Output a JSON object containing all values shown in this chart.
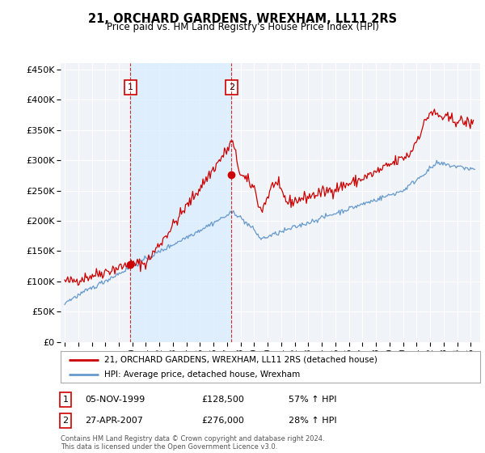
{
  "title": "21, ORCHARD GARDENS, WREXHAM, LL11 2RS",
  "subtitle": "Price paid vs. HM Land Registry's House Price Index (HPI)",
  "legend_line1": "21, ORCHARD GARDENS, WREXHAM, LL11 2RS (detached house)",
  "legend_line2": "HPI: Average price, detached house, Wrexham",
  "note": "Contains HM Land Registry data © Crown copyright and database right 2024.\nThis data is licensed under the Open Government Licence v3.0.",
  "annotation1": {
    "num": "1",
    "date": "05-NOV-1999",
    "price": "£128,500",
    "change": "57% ↑ HPI"
  },
  "annotation2": {
    "num": "2",
    "date": "27-APR-2007",
    "price": "£276,000",
    "change": "28% ↑ HPI"
  },
  "red_color": "#cc0000",
  "blue_color": "#6699cc",
  "shade_color": "#ddeeff",
  "ylim": [
    0,
    460000
  ],
  "yticks": [
    0,
    50000,
    100000,
    150000,
    200000,
    250000,
    300000,
    350000,
    400000,
    450000
  ],
  "background_color": "#ffffff",
  "plot_bg_color": "#f0f4f8",
  "grid_color": "#ffffff",
  "marker1_x": 1999.85,
  "marker2_x": 2007.33,
  "marker1_y": 128500,
  "marker2_y": 276000,
  "xmin": 1994.7,
  "xmax": 2025.7
}
